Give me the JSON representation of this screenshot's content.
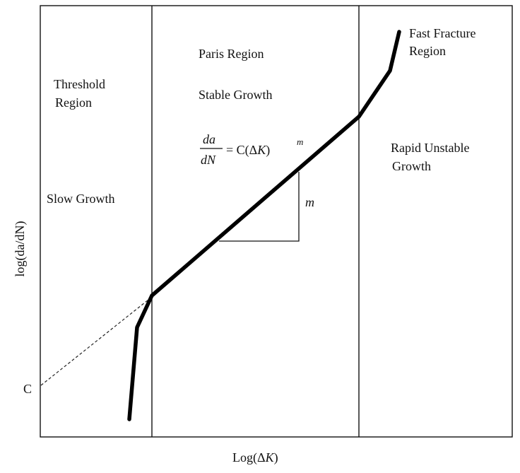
{
  "diagram": {
    "x_axis_label_prefix": "Log(Δ",
    "x_axis_label_var": "K",
    "x_axis_label_suffix": ")",
    "y_axis_label": "log(da/dN)",
    "intercept_label": "C",
    "regions": {
      "threshold": {
        "title_line1": "Threshold",
        "title_line2": "Region",
        "subtitle": "Slow Growth"
      },
      "paris": {
        "title": "Paris Region",
        "subtitle": "Stable Growth"
      },
      "rapid": {
        "title_line1": "Rapid Unstable",
        "title_line2": "Growth"
      },
      "fast_fracture": {
        "title_line1": "Fast Fracture",
        "title_line2": "Region"
      }
    },
    "equation": {
      "numerator": "da",
      "denominator": "dN",
      "rhs_prefix": "= C(Δ",
      "rhs_var": "K",
      "rhs_close": ")",
      "exponent": "m"
    },
    "slope_label": "m"
  }
}
